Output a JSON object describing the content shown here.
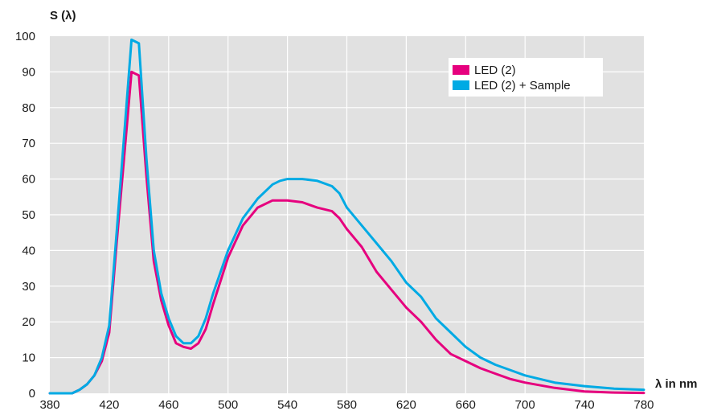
{
  "chart_data": {
    "type": "line",
    "ylabel": "S (λ)",
    "xlabel": "λ in nm",
    "xlim": [
      380,
      780
    ],
    "ylim": [
      0,
      100
    ],
    "xticks": [
      380,
      420,
      460,
      500,
      540,
      580,
      620,
      660,
      700,
      740,
      780
    ],
    "yticks": [
      0,
      10,
      20,
      30,
      40,
      50,
      60,
      70,
      80,
      90,
      100
    ],
    "grid": true,
    "legend_position": "top-right",
    "series": [
      {
        "name": "LED (2)",
        "color": "#e6007e",
        "x": [
          380,
          395,
          400,
          405,
          410,
          415,
          420,
          425,
          430,
          435,
          440,
          445,
          450,
          455,
          460,
          465,
          470,
          475,
          480,
          485,
          490,
          500,
          510,
          520,
          530,
          535,
          540,
          550,
          560,
          570,
          575,
          580,
          590,
          600,
          610,
          620,
          630,
          640,
          650,
          660,
          670,
          680,
          690,
          700,
          720,
          740,
          760,
          780
        ],
        "values": [
          0,
          0,
          1,
          2.5,
          5,
          9,
          17,
          42,
          66,
          90,
          89,
          61,
          37,
          26,
          19,
          14,
          13,
          12.5,
          14,
          18,
          25,
          38,
          47,
          52,
          54,
          54,
          54,
          53.5,
          52,
          51,
          49,
          46,
          41,
          34,
          29,
          24,
          20,
          15,
          11,
          9,
          7,
          5.5,
          4,
          3,
          1.5,
          0.5,
          0.2,
          0.1
        ]
      },
      {
        "name": "LED (2) + Sample",
        "color": "#00aae4",
        "x": [
          380,
          395,
          400,
          405,
          410,
          415,
          420,
          425,
          430,
          435,
          440,
          445,
          450,
          455,
          460,
          465,
          470,
          475,
          480,
          485,
          490,
          500,
          510,
          520,
          530,
          535,
          540,
          550,
          560,
          570,
          575,
          580,
          590,
          600,
          610,
          620,
          630,
          640,
          650,
          660,
          670,
          680,
          690,
          700,
          720,
          740,
          760,
          780
        ],
        "values": [
          0,
          0,
          1,
          2.5,
          5,
          10,
          19,
          45,
          72,
          99,
          98,
          66,
          40,
          28,
          21,
          16,
          14,
          14,
          16,
          21,
          28,
          40,
          49,
          54.5,
          58.5,
          59.5,
          60,
          60,
          59.5,
          58,
          56,
          52,
          47,
          42,
          37,
          31,
          27,
          21,
          17,
          13,
          10,
          8,
          6.5,
          5,
          3,
          2,
          1.3,
          1
        ]
      }
    ]
  }
}
